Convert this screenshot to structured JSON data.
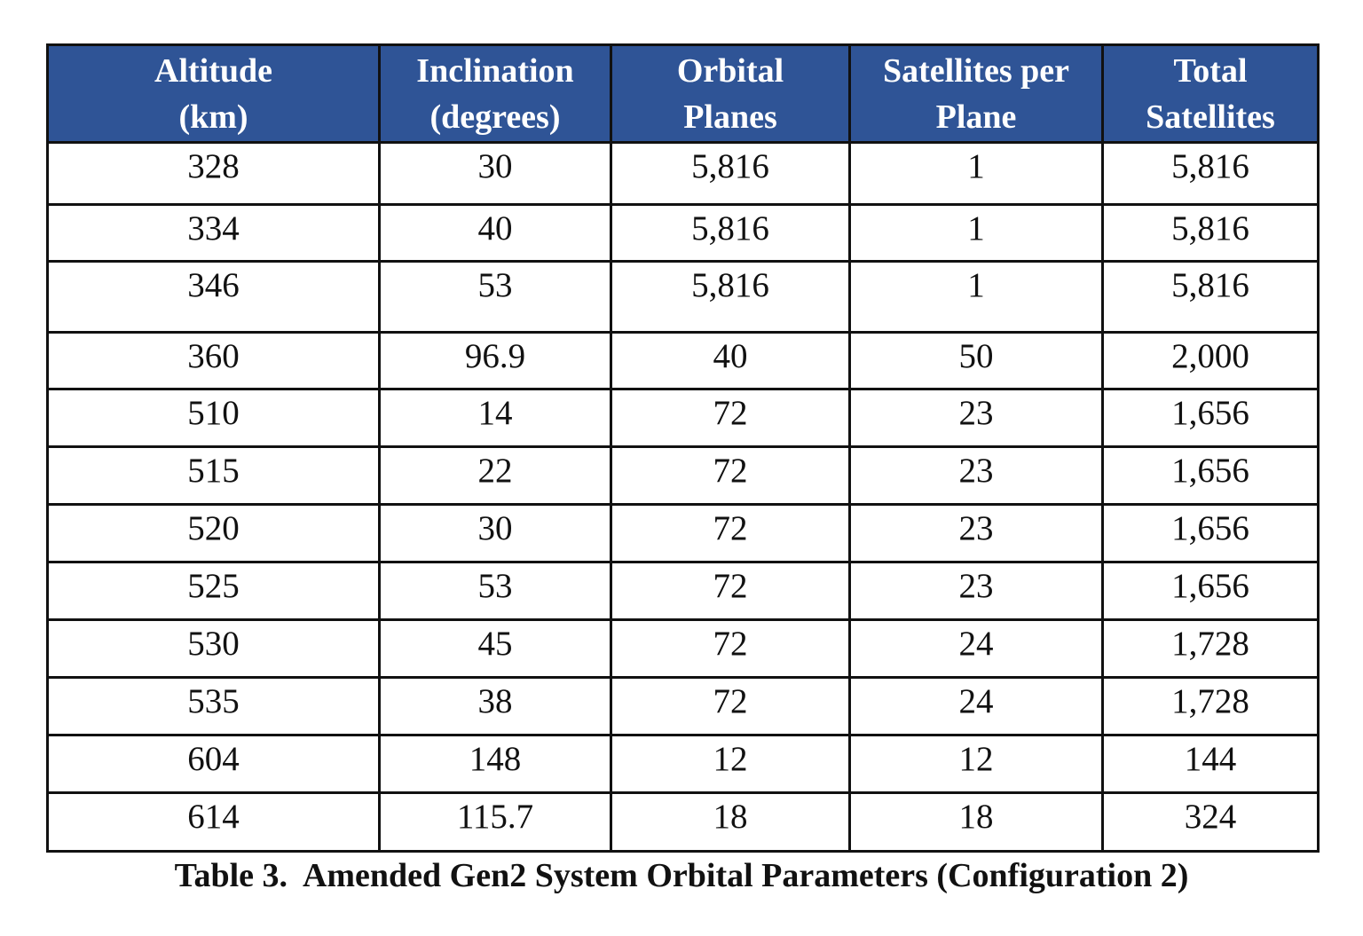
{
  "table": {
    "columns": [
      {
        "line1": "Altitude",
        "line2": "(km)"
      },
      {
        "line1": "Inclination",
        "line2": "(degrees)"
      },
      {
        "line1": "Orbital",
        "line2": "Planes"
      },
      {
        "line1": "Satellites per",
        "line2": "Plane"
      },
      {
        "line1": "Total",
        "line2": "Satellites"
      }
    ],
    "rows": [
      [
        "328",
        "30",
        "5,816",
        "1",
        "5,816"
      ],
      [
        "334",
        "40",
        "5,816",
        "1",
        "5,816"
      ],
      [
        "346",
        "53",
        "5,816",
        "1",
        "5,816"
      ],
      [
        "360",
        "96.9",
        "40",
        "50",
        "2,000"
      ],
      [
        "510",
        "14",
        "72",
        "23",
        "1,656"
      ],
      [
        "515",
        "22",
        "72",
        "23",
        "1,656"
      ],
      [
        "520",
        "30",
        "72",
        "23",
        "1,656"
      ],
      [
        "525",
        "53",
        "72",
        "23",
        "1,656"
      ],
      [
        "530",
        "45",
        "72",
        "24",
        "1,728"
      ],
      [
        "535",
        "38",
        "72",
        "24",
        "1,728"
      ],
      [
        "604",
        "148",
        "12",
        "12",
        "144"
      ],
      [
        "614",
        "115.7",
        "18",
        "18",
        "324"
      ]
    ]
  },
  "caption": "Table 3.  Amended Gen2 System Orbital Parameters (Configuration 2)",
  "colors": {
    "header_bg": "#2f5496",
    "header_text": "#ffffff",
    "border": "#111111"
  }
}
